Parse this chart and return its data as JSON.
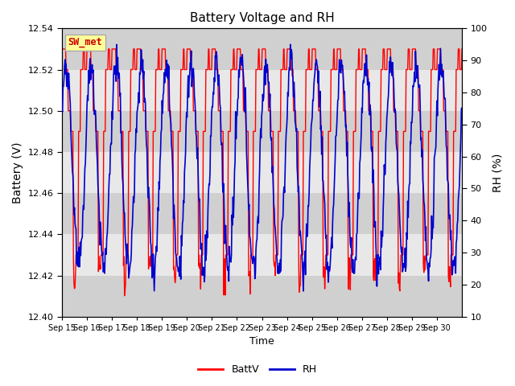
{
  "title": "Battery Voltage and RH",
  "xlabel": "Time",
  "ylabel_left": "Battery (V)",
  "ylabel_right": "RH (%)",
  "label_text": "SW_met",
  "ylim_left": [
    12.4,
    12.54
  ],
  "ylim_right": [
    10,
    100
  ],
  "yticks_left": [
    12.4,
    12.42,
    12.44,
    12.46,
    12.48,
    12.5,
    12.52,
    12.54
  ],
  "yticks_right": [
    10,
    20,
    30,
    40,
    50,
    60,
    70,
    80,
    90,
    100
  ],
  "x_labels": [
    "Sep 15",
    "Sep 16",
    "Sep 17",
    "Sep 18",
    "Sep 19",
    "Sep 20",
    "Sep 21",
    "Sep 22",
    "Sep 23",
    "Sep 24",
    "Sep 25",
    "Sep 26",
    "Sep 27",
    "Sep 28",
    "Sep 29",
    "Sep 30"
  ],
  "color_battv": "#FF0000",
  "color_rh": "#0000CD",
  "legend_battv": "BattV",
  "legend_rh": "RH",
  "bg_color": "#FFFFFF",
  "plot_bg_color": "#E8E8E8",
  "stripe_color": "#D0D0D0",
  "label_bg": "#FFFF99",
  "label_border": "#AAAAAA",
  "label_text_color": "#CC0000"
}
